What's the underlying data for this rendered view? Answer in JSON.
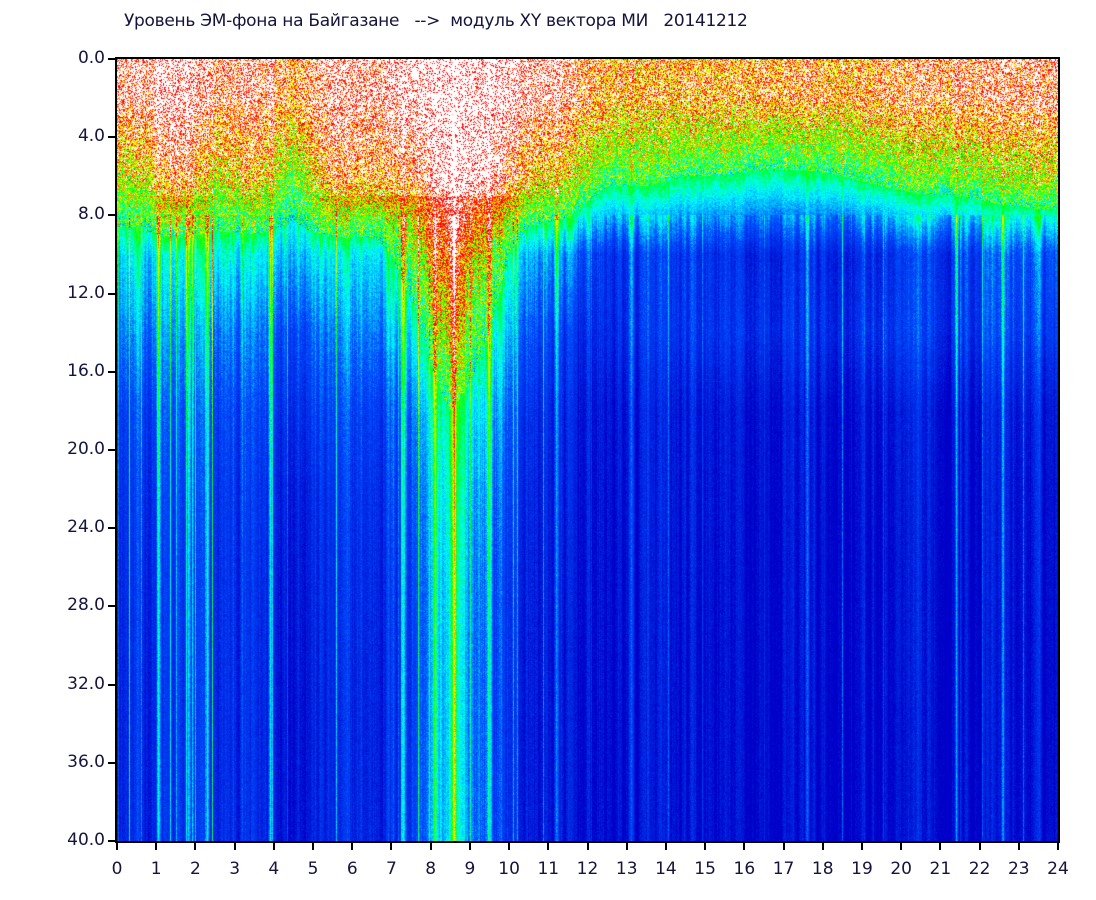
{
  "chart_data": {
    "type": "heatmap",
    "title": "Уровень ЭМ-фона на Байгазане   -->  модуль XY вектора МИ   20141212",
    "xlabel": "",
    "ylabel": "",
    "xlim": [
      0,
      24
    ],
    "ylim": [
      40.0,
      0.0
    ],
    "y_inverted": true,
    "x_ticks": [
      "0",
      "1",
      "2",
      "3",
      "4",
      "5",
      "6",
      "7",
      "8",
      "9",
      "10",
      "11",
      "12",
      "13",
      "14",
      "15",
      "16",
      "17",
      "18",
      "19",
      "20",
      "21",
      "22",
      "23",
      "24"
    ],
    "y_ticks": [
      "0.0",
      "4.0",
      "8.0",
      "12.0",
      "16.0",
      "20.0",
      "24.0",
      "28.0",
      "32.0",
      "36.0",
      "40.0"
    ],
    "grid": false,
    "colormap": [
      "#0000c8",
      "#0060ff",
      "#00ffff",
      "#00ff00",
      "#ffff00",
      "#ff0000",
      "#ffffff"
    ],
    "x_hours": [
      0.5,
      1.5,
      2.5,
      3.5,
      4.5,
      5.5,
      6.5,
      7.5,
      8.5,
      9.5,
      10.5,
      11.5,
      12.5,
      13.5,
      14.5,
      15.5,
      16.5,
      17.5,
      18.5,
      19.5,
      20.5,
      21.5,
      22.5,
      23.5
    ],
    "y_band_centers": [
      2,
      6,
      10,
      14,
      18,
      22,
      26,
      30,
      34,
      38
    ],
    "levels": [
      [
        0.92,
        0.96,
        0.88,
        0.92,
        0.85,
        0.93,
        0.93,
        0.97,
        1.0,
        1.0,
        0.95,
        0.9,
        0.8,
        0.78,
        0.8,
        0.8,
        0.82,
        0.82,
        0.8,
        0.84,
        0.86,
        0.88,
        0.88,
        0.9
      ],
      [
        0.68,
        0.88,
        0.68,
        0.78,
        0.6,
        0.84,
        0.84,
        0.86,
        1.0,
        0.98,
        0.78,
        0.72,
        0.55,
        0.55,
        0.5,
        0.5,
        0.47,
        0.47,
        0.5,
        0.55,
        0.6,
        0.6,
        0.64,
        0.68
      ],
      [
        0.4,
        0.4,
        0.42,
        0.4,
        0.42,
        0.4,
        0.4,
        0.6,
        0.85,
        0.65,
        0.35,
        0.3,
        0.16,
        0.15,
        0.15,
        0.13,
        0.12,
        0.12,
        0.13,
        0.14,
        0.16,
        0.2,
        0.24,
        0.25
      ],
      [
        0.3,
        0.3,
        0.28,
        0.28,
        0.27,
        0.28,
        0.3,
        0.42,
        0.7,
        0.5,
        0.24,
        0.16,
        0.13,
        0.13,
        0.14,
        0.15,
        0.14,
        0.13,
        0.14,
        0.16,
        0.16,
        0.18,
        0.2,
        0.2
      ],
      [
        0.2,
        0.22,
        0.2,
        0.2,
        0.2,
        0.2,
        0.2,
        0.3,
        0.5,
        0.38,
        0.15,
        0.1,
        0.06,
        0.06,
        0.06,
        0.06,
        0.05,
        0.05,
        0.05,
        0.06,
        0.06,
        0.07,
        0.09,
        0.09
      ],
      [
        0.16,
        0.18,
        0.16,
        0.16,
        0.15,
        0.15,
        0.16,
        0.25,
        0.45,
        0.32,
        0.12,
        0.08,
        0.05,
        0.05,
        0.05,
        0.05,
        0.04,
        0.04,
        0.04,
        0.04,
        0.05,
        0.06,
        0.07,
        0.07
      ],
      [
        0.14,
        0.16,
        0.14,
        0.14,
        0.13,
        0.13,
        0.14,
        0.22,
        0.42,
        0.28,
        0.1,
        0.07,
        0.04,
        0.04,
        0.04,
        0.04,
        0.03,
        0.03,
        0.03,
        0.03,
        0.04,
        0.05,
        0.06,
        0.06
      ],
      [
        0.13,
        0.15,
        0.13,
        0.13,
        0.12,
        0.12,
        0.13,
        0.2,
        0.4,
        0.26,
        0.09,
        0.06,
        0.04,
        0.04,
        0.03,
        0.03,
        0.03,
        0.03,
        0.03,
        0.03,
        0.04,
        0.04,
        0.05,
        0.05
      ],
      [
        0.12,
        0.14,
        0.12,
        0.12,
        0.11,
        0.11,
        0.12,
        0.2,
        0.4,
        0.25,
        0.08,
        0.06,
        0.03,
        0.03,
        0.03,
        0.03,
        0.02,
        0.02,
        0.02,
        0.02,
        0.03,
        0.04,
        0.05,
        0.05
      ],
      [
        0.12,
        0.14,
        0.12,
        0.12,
        0.11,
        0.11,
        0.12,
        0.2,
        0.4,
        0.25,
        0.08,
        0.06,
        0.03,
        0.03,
        0.03,
        0.03,
        0.02,
        0.02,
        0.02,
        0.02,
        0.03,
        0.04,
        0.05,
        0.05
      ]
    ],
    "bright_streaks_hours": [
      1.05,
      1.8,
      2.3,
      3.9,
      7.3,
      8.1,
      8.6,
      9.5,
      11.2,
      13.1,
      17.6,
      21.4,
      22.6
    ]
  }
}
